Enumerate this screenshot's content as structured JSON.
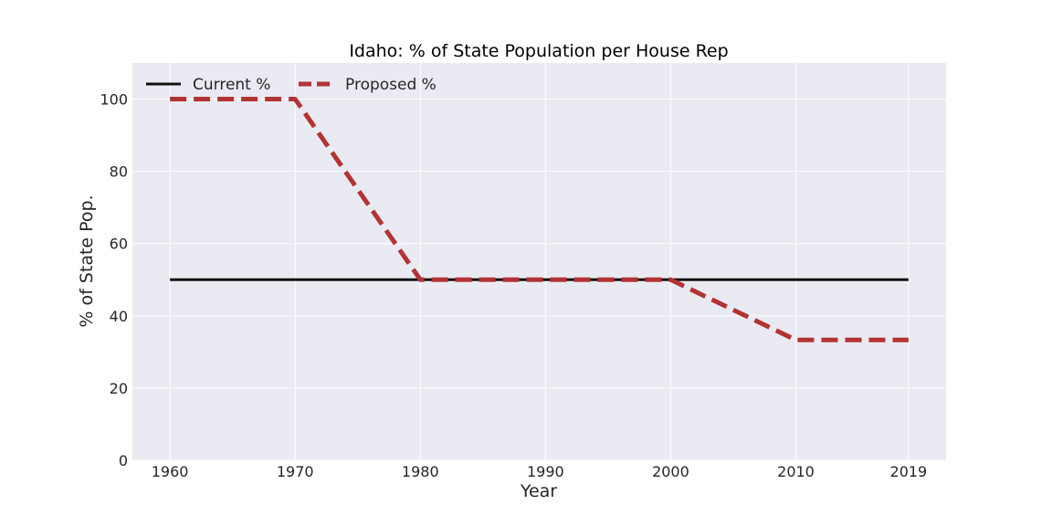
{
  "chart_data": {
    "type": "line",
    "title": "Idaho: % of State Population per House Rep",
    "xlabel": "Year",
    "ylabel": "% of State Pop.",
    "x": [
      1960,
      1970,
      1980,
      1990,
      2000,
      2010,
      2019
    ],
    "x_tick_labels": [
      "1960",
      "1970",
      "1980",
      "1990",
      "2000",
      "2010",
      "2019"
    ],
    "y_ticks": [
      0,
      20,
      40,
      60,
      80,
      100
    ],
    "y_tick_labels": [
      "0",
      "20",
      "40",
      "60",
      "80",
      "100"
    ],
    "xlim": [
      1957,
      2022
    ],
    "ylim": [
      0,
      110
    ],
    "grid": true,
    "legend_position": "upper-left",
    "series": [
      {
        "name": "Current %",
        "values": [
          50,
          50,
          50,
          50,
          50,
          50,
          50
        ],
        "color": "#111111",
        "style": "solid"
      },
      {
        "name": "Proposed %",
        "values": [
          100,
          100,
          50,
          50,
          50,
          33.3,
          33.3
        ],
        "color": "#b33333",
        "style": "dashed"
      }
    ],
    "background_color": "#eaeaf2",
    "grid_color": "#ffffff"
  }
}
